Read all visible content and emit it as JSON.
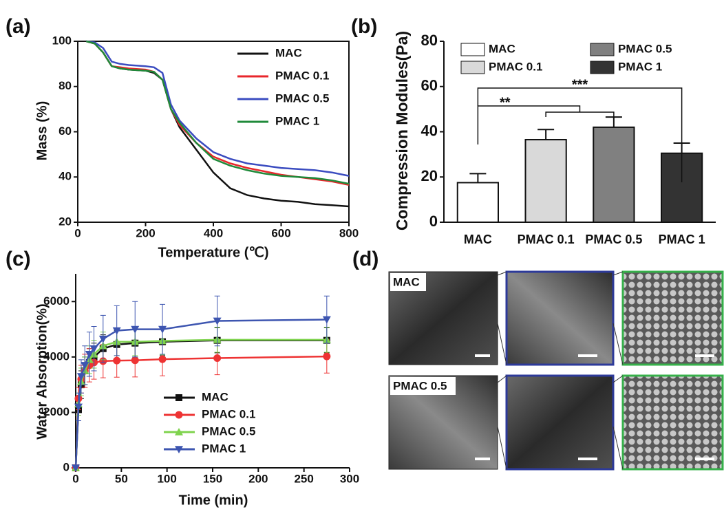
{
  "chart_data": [
    {
      "type": "line",
      "panel_label": "(a)",
      "xlabel": "Temperature (℃)",
      "ylabel": "Mass (%)",
      "x": [
        25,
        50,
        75,
        100,
        125,
        150,
        200,
        225,
        250,
        275,
        300,
        350,
        400,
        450,
        500,
        550,
        600,
        650,
        700,
        750,
        800
      ],
      "series": [
        {
          "name": "MAC",
          "color": "#111111",
          "values": [
            100,
            99,
            95,
            89,
            88,
            87.5,
            87,
            86,
            83,
            70,
            62,
            52,
            42,
            35,
            32,
            30.5,
            29.5,
            29,
            28,
            27.5,
            27
          ]
        },
        {
          "name": "PMAC 0.1",
          "color": "#e8262b",
          "values": [
            100,
            99,
            95,
            89,
            88.5,
            88,
            87.5,
            86.5,
            83,
            70,
            63,
            55,
            49,
            46,
            44,
            42.5,
            41,
            40,
            39,
            38,
            36.5
          ]
        },
        {
          "name": "PMAC 0.5",
          "color": "#3b4cc0",
          "values": [
            100,
            99.5,
            97,
            91,
            90,
            89.5,
            89,
            88.5,
            86,
            72,
            65,
            57,
            51,
            48,
            46,
            45,
            44,
            43.5,
            43,
            42,
            40.5
          ]
        },
        {
          "name": "PMAC 1",
          "color": "#1f8a3a",
          "values": [
            100,
            99,
            95,
            89,
            88,
            87.5,
            87,
            86.5,
            83,
            70,
            64,
            55,
            48,
            45,
            43,
            41.5,
            40.5,
            40,
            39.5,
            38.5,
            37
          ]
        }
      ],
      "xlim": [
        0,
        800
      ],
      "xticks": [
        0,
        200,
        400,
        600,
        800
      ],
      "ylim": [
        20,
        100
      ],
      "yticks": [
        20,
        40,
        60,
        80,
        100
      ],
      "legend": "upper right"
    },
    {
      "type": "bar",
      "panel_label": "(b)",
      "ylabel": "Compression Modules(Pa)",
      "categories": [
        "MAC",
        "PMAC 0.1",
        "PMAC 0.5",
        "PMAC 1"
      ],
      "values": [
        17.5,
        36.5,
        42,
        30.5
      ],
      "errors": [
        4,
        4.5,
        4.5,
        4.5
      ],
      "colors": [
        "#ffffff",
        "#d9d9d9",
        "#808080",
        "#333333"
      ],
      "annotations": [
        "**",
        "***"
      ],
      "ylim": [
        0,
        80
      ],
      "yticks": [
        0,
        20,
        40,
        60,
        80
      ],
      "legend": "upper center"
    },
    {
      "type": "line",
      "panel_label": "(c)",
      "xlabel": "Time (min)",
      "ylabel": "Water Absorption(%)",
      "x": [
        0,
        3,
        6,
        10,
        15,
        20,
        30,
        45,
        65,
        95,
        155,
        275
      ],
      "series": [
        {
          "name": "MAC",
          "color": "#111111",
          "marker": "square",
          "values": [
            0,
            2100,
            3000,
            3500,
            3800,
            4000,
            4300,
            4450,
            4500,
            4550,
            4600,
            4600
          ],
          "errors": [
            0,
            400,
            500,
            500,
            500,
            500,
            500,
            500,
            500,
            500,
            450,
            450
          ]
        },
        {
          "name": "PMAC 0.1",
          "color": "#ee3333",
          "marker": "circle",
          "values": [
            0,
            2500,
            3200,
            3500,
            3700,
            3800,
            3850,
            3870,
            3880,
            3920,
            3960,
            4020
          ],
          "errors": [
            0,
            400,
            500,
            600,
            600,
            600,
            600,
            600,
            600,
            600,
            600,
            600
          ]
        },
        {
          "name": "PMAC 0.5",
          "color": "#7fd34e",
          "marker": "triangle-up",
          "values": [
            0,
            2300,
            3100,
            3500,
            3900,
            4100,
            4400,
            4550,
            4550,
            4580,
            4620,
            4620
          ],
          "errors": [
            0,
            400,
            500,
            500,
            500,
            500,
            500,
            500,
            500,
            500,
            450,
            450
          ]
        },
        {
          "name": "PMAC 1",
          "color": "#3d55b0",
          "marker": "triangle-down",
          "values": [
            0,
            2200,
            3300,
            3700,
            4100,
            4300,
            4650,
            4950,
            5000,
            5000,
            5300,
            5350
          ],
          "errors": [
            0,
            500,
            600,
            700,
            800,
            800,
            850,
            900,
            1000,
            900,
            900,
            850
          ]
        }
      ],
      "xlim": [
        0,
        300
      ],
      "xticks": [
        0,
        50,
        100,
        150,
        200,
        250,
        300
      ],
      "ylim": [
        0,
        7000
      ],
      "yticks": [
        0,
        2000,
        4000,
        6000
      ],
      "legend": "lower center"
    }
  ],
  "sem_images": {
    "panel_label": "(d)",
    "rows": [
      "MAC",
      "PMAC 0.5"
    ]
  }
}
